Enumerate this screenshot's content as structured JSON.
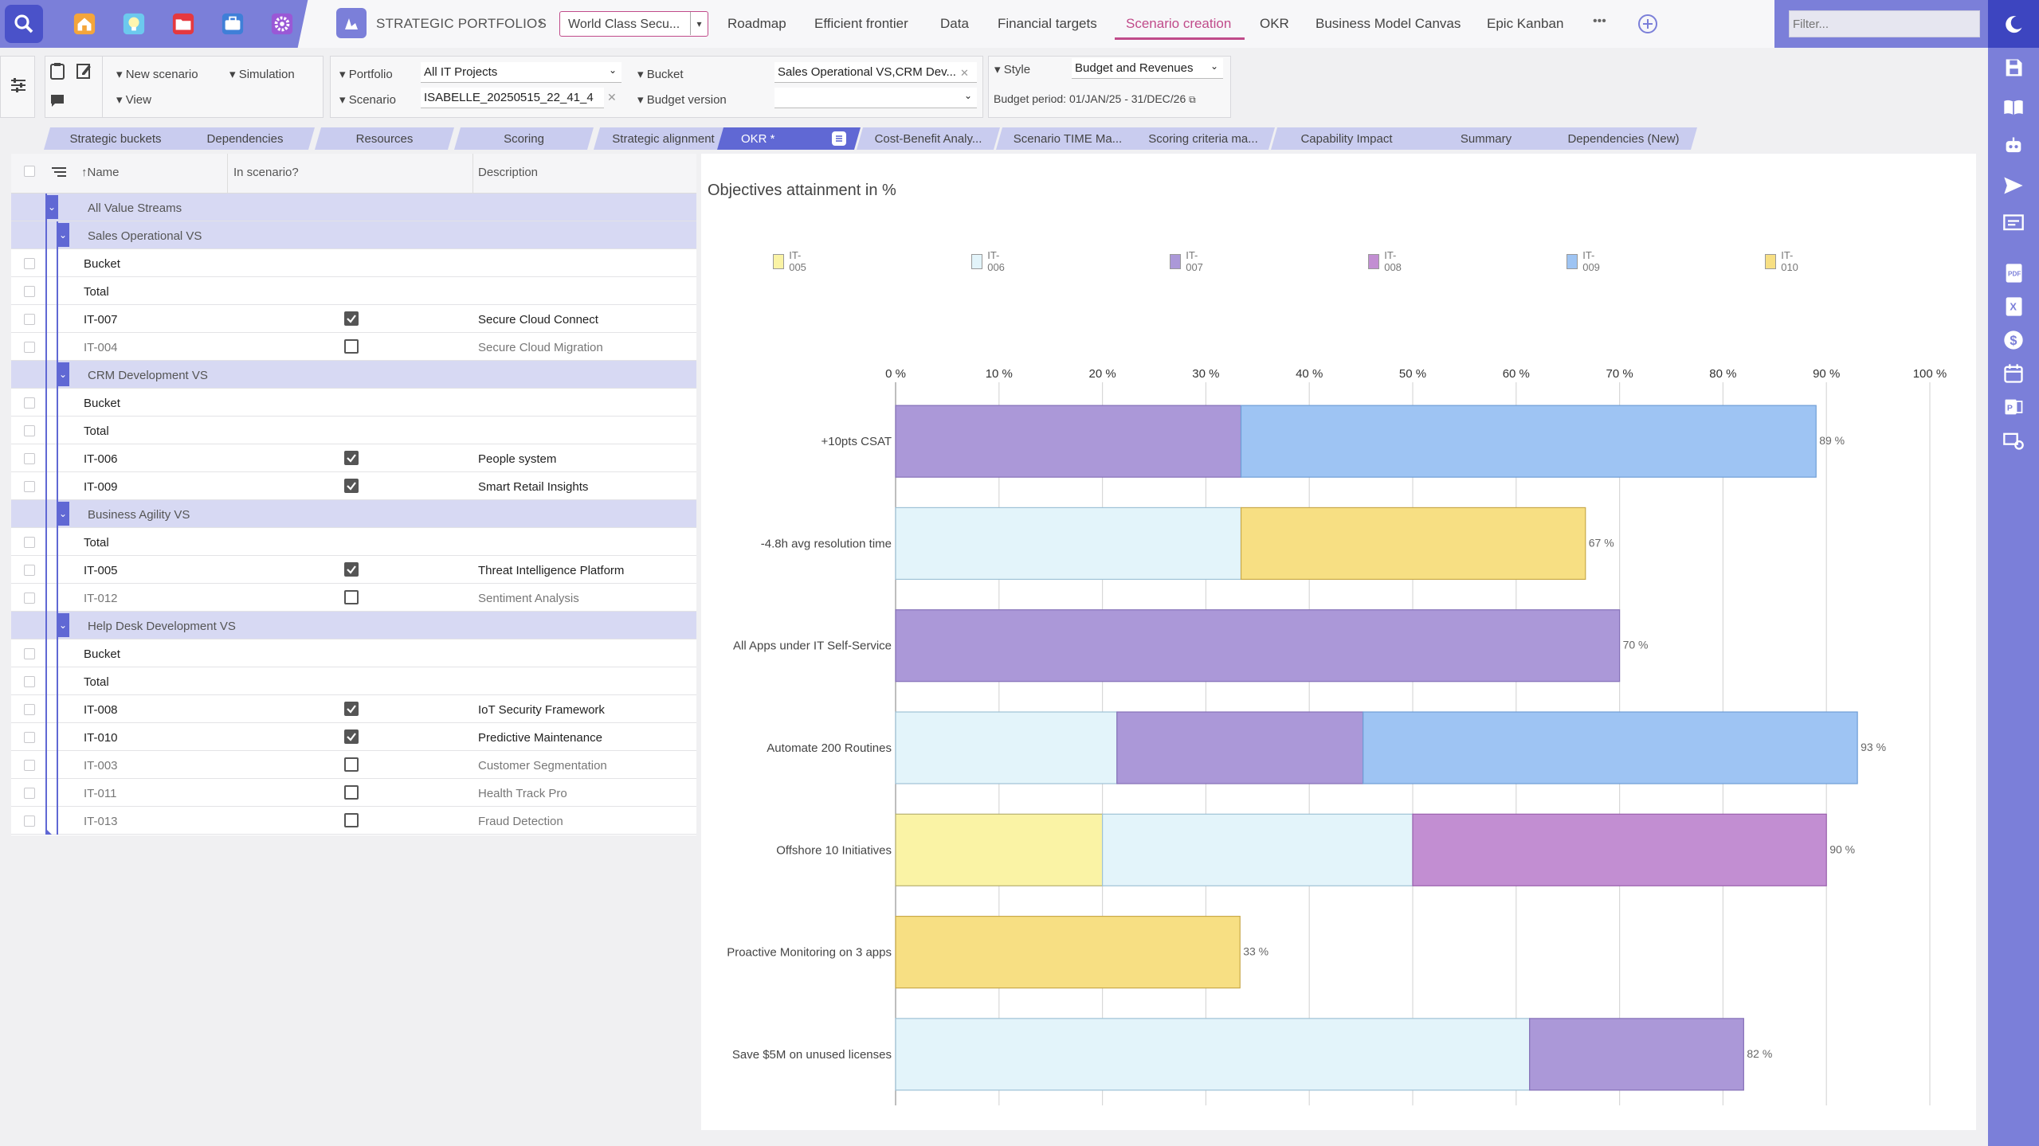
{
  "topbar": {
    "app_icons": [
      "search-icon",
      "home-icon",
      "lightbulb-icon",
      "folder-icon",
      "briefcase-icon",
      "gear-icon"
    ],
    "breadcrumb": "STRATEGIC PORTFOLIOS",
    "project": "World Class Secu...",
    "nav": [
      "Roadmap",
      "Efficient frontier",
      "Data",
      "Financial targets",
      "Scenario creation",
      "OKR",
      "Business Model Canvas",
      "Epic Kanban"
    ],
    "active_nav": "Scenario creation",
    "more": "•••",
    "filter_placeholder": "Filter..."
  },
  "toolbar": {
    "new_scenario": "New scenario",
    "simulation": "Simulation",
    "view": "View",
    "portfolio_label": "Portfolio",
    "portfolio_value": "All IT Projects",
    "scenario_label": "Scenario",
    "scenario_value": "ISABELLE_20250515_22_41_4",
    "bucket_label": "Bucket",
    "bucket_value": "Sales Operational VS,CRM Dev...",
    "budget_version_label": "Budget version",
    "budget_version_value": "",
    "style_label": "Style",
    "style_value": "Budget and Revenues",
    "budget_period": "Budget period: 01/JAN/25 - 31/DEC/26"
  },
  "tabs": [
    "Strategic buckets",
    "Dependencies",
    "Resources",
    "Scoring",
    "Strategic alignment",
    "OKR *",
    "Cost-Benefit Analy...",
    "Scenario TIME Ma...",
    "Scoring criteria ma...",
    "Capability Impact",
    "Summary",
    "Dependencies (New)"
  ],
  "grid": {
    "headers": {
      "name": "Name",
      "in_scenario": "In scenario?",
      "description": "Description"
    },
    "rows": [
      {
        "type": "group",
        "level": 0,
        "label": "All Value Streams"
      },
      {
        "type": "group",
        "level": 1,
        "label": "Sales Operational VS"
      },
      {
        "type": "sub",
        "label": "Bucket"
      },
      {
        "type": "sub",
        "label": "Total"
      },
      {
        "type": "item",
        "id": "IT-007",
        "checked": true,
        "desc": "Secure Cloud Connect"
      },
      {
        "type": "item",
        "id": "IT-004",
        "checked": false,
        "desc": "Secure Cloud Migration"
      },
      {
        "type": "group",
        "level": 1,
        "label": "CRM Development VS"
      },
      {
        "type": "sub",
        "label": "Bucket"
      },
      {
        "type": "sub",
        "label": "Total"
      },
      {
        "type": "item",
        "id": "IT-006",
        "checked": true,
        "desc": "People system"
      },
      {
        "type": "item",
        "id": "IT-009",
        "checked": true,
        "desc": "Smart Retail Insights"
      },
      {
        "type": "group",
        "level": 1,
        "label": "Business Agility VS"
      },
      {
        "type": "sub",
        "label": "Total"
      },
      {
        "type": "item",
        "id": "IT-005",
        "checked": true,
        "desc": "Threat Intelligence Platform"
      },
      {
        "type": "item",
        "id": "IT-012",
        "checked": false,
        "desc": "Sentiment Analysis"
      },
      {
        "type": "group",
        "level": 1,
        "label": "Help Desk Development VS"
      },
      {
        "type": "sub",
        "label": "Bucket"
      },
      {
        "type": "sub",
        "label": "Total"
      },
      {
        "type": "item",
        "id": "IT-008",
        "checked": true,
        "desc": "IoT Security Framework"
      },
      {
        "type": "item",
        "id": "IT-010",
        "checked": true,
        "desc": "Predictive Maintenance"
      },
      {
        "type": "item",
        "id": "IT-003",
        "checked": false,
        "desc": "Customer Segmentation"
      },
      {
        "type": "item",
        "id": "IT-011",
        "checked": false,
        "desc": "Health Track Pro"
      },
      {
        "type": "item",
        "id": "IT-013",
        "checked": false,
        "desc": "Fraud Detection"
      }
    ]
  },
  "chart_data": {
    "type": "bar",
    "orientation": "horizontal",
    "stacked": true,
    "title": "Objectives attainment in %",
    "xlim": [
      0,
      100
    ],
    "xticks": [
      "0 %",
      "10 %",
      "20 %",
      "30 %",
      "40 %",
      "50 %",
      "60 %",
      "70 %",
      "80 %",
      "90 %",
      "100 %"
    ],
    "legend": [
      {
        "name": "IT-005",
        "color": "#faf3a5"
      },
      {
        "name": "IT-006",
        "color": "#e3f4fa"
      },
      {
        "name": "IT-007",
        "color": "#ab98d8"
      },
      {
        "name": "IT-008",
        "color": "#c28ed2"
      },
      {
        "name": "IT-009",
        "color": "#9ec4f3"
      },
      {
        "name": "IT-010",
        "color": "#f7df83"
      }
    ],
    "categories": [
      "+10pts CSAT",
      "-4.8h avg resolution time",
      "All Apps under IT Self-Service",
      "Automate 200 Routines",
      "Offshore 10 Initiatives",
      "Proactive Monitoring on 3 apps",
      "Save $5M on unused licenses"
    ],
    "bars": [
      {
        "segments": [
          {
            "series": "IT-007",
            "value": 33.4
          },
          {
            "series": "IT-009",
            "value": 55.6
          }
        ],
        "label": "89 %"
      },
      {
        "segments": [
          {
            "series": "IT-006",
            "value": 33.4
          },
          {
            "series": "IT-010",
            "value": 33.3
          }
        ],
        "label": "67 %"
      },
      {
        "segments": [
          {
            "series": "IT-007",
            "value": 70
          }
        ],
        "label": "70 %"
      },
      {
        "segments": [
          {
            "series": "IT-006",
            "value": 21.4
          },
          {
            "series": "IT-007",
            "value": 23.8
          },
          {
            "series": "IT-009",
            "value": 47.8
          }
        ],
        "label": "93 %"
      },
      {
        "segments": [
          {
            "series": "IT-005",
            "value": 20
          },
          {
            "series": "IT-006",
            "value": 30
          },
          {
            "series": "IT-008",
            "value": 40
          }
        ],
        "label": "90 %"
      },
      {
        "segments": [
          {
            "series": "IT-010",
            "value": 33.3
          }
        ],
        "label": "33 %"
      },
      {
        "segments": [
          {
            "series": "IT-006",
            "value": 61.3
          },
          {
            "series": "IT-007",
            "value": 20.7
          }
        ],
        "label": "82 %"
      }
    ]
  }
}
